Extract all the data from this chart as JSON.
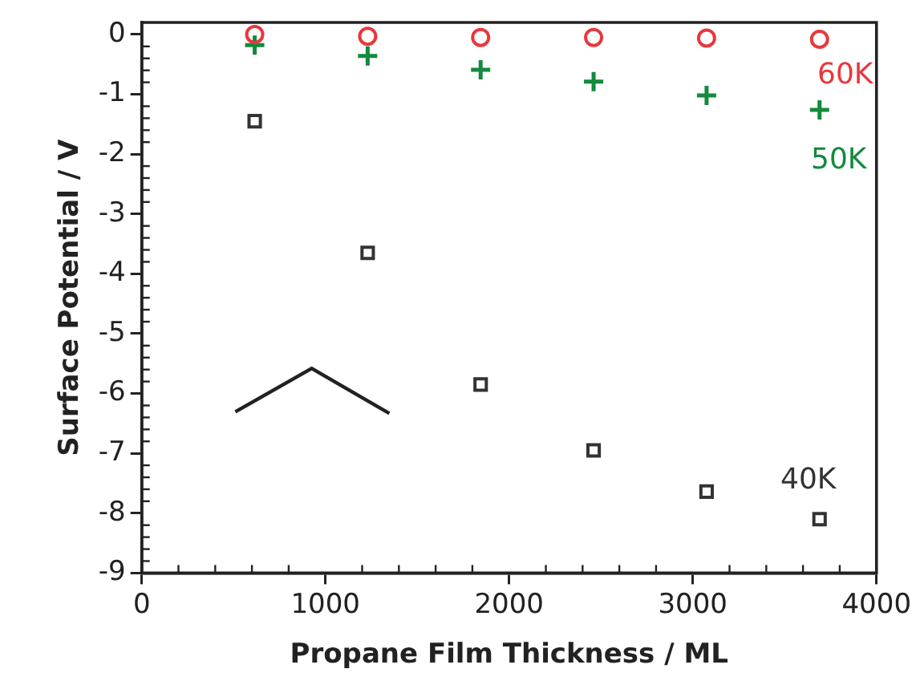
{
  "chart_data": {
    "type": "scatter",
    "xlabel": "Propane Film Thickness / ML",
    "ylabel": "Surface Potential / V",
    "x": [
      615,
      1230,
      1845,
      2460,
      3075,
      3690
    ],
    "series": [
      {
        "name": "60K",
        "color": "#e8383d",
        "marker": "circle",
        "values": [
          0,
          -0.03,
          -0.05,
          -0.05,
          -0.06,
          -0.08
        ]
      },
      {
        "name": "50K",
        "color": "#138a3e",
        "marker": "cross",
        "values": [
          -0.18,
          -0.36,
          -0.59,
          -0.79,
          -1.02,
          -1.26
        ]
      },
      {
        "name": "40K",
        "color": "#333333",
        "marker": "square",
        "values": [
          -1.45,
          -3.65,
          -5.85,
          -6.95,
          -7.64,
          -8.1
        ]
      }
    ],
    "xlim": [
      0,
      4000
    ],
    "xticks": [
      0,
      1000,
      2000,
      3000,
      4000
    ],
    "ylim": [
      -9,
      0.2
    ],
    "yticks": [
      0,
      -1,
      -2,
      -3,
      -4,
      -5,
      -6,
      -7,
      -8,
      -9
    ],
    "grid": false,
    "legend": false
  }
}
